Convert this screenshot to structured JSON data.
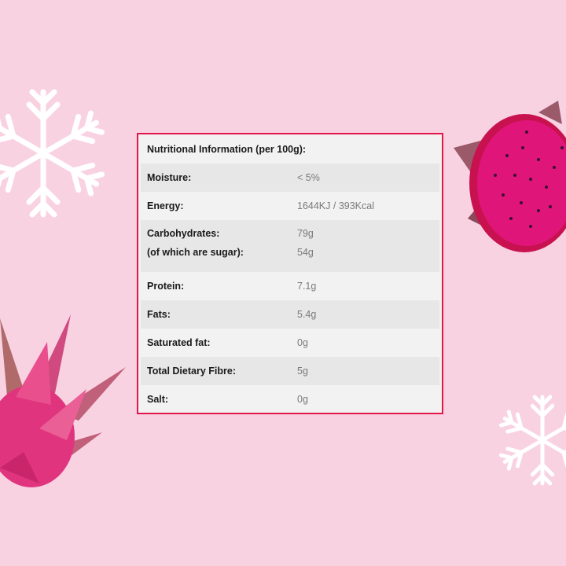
{
  "table": {
    "title": "Nutritional Information (per 100g):",
    "rows": [
      {
        "label": "Moisture:",
        "value": "< 5%"
      },
      {
        "label": "Energy:",
        "value": "1644KJ / 393Kcal"
      },
      {
        "label": "Carbohydrates:",
        "value": "79g",
        "sub_label": "(of which are sugar):",
        "sub_value": "54g"
      },
      {
        "label": "Protein:",
        "value": "7.1g"
      },
      {
        "label": "Fats:",
        "value": "5.4g"
      },
      {
        "label": "Saturated fat:",
        "value": "0g"
      },
      {
        "label": "Total Dietary Fibre:",
        "value": "5g"
      },
      {
        "label": "Salt:",
        "value": "0g"
      }
    ]
  },
  "colors": {
    "background": "#f9d2e2",
    "border": "#e2164b",
    "fruit": "#e0157a"
  },
  "decorations": [
    "snowflake-icon",
    "snowflake-icon",
    "dragon-fruit-half",
    "dragon-fruit-whole"
  ]
}
